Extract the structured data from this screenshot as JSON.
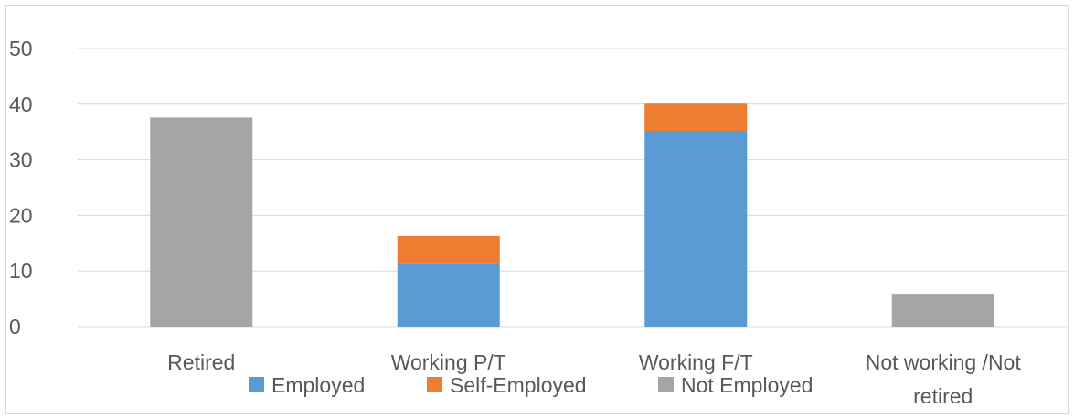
{
  "chart_data": {
    "type": "bar",
    "stacked": true,
    "title": "",
    "xlabel": "",
    "ylabel": "",
    "ylim": [
      0,
      50
    ],
    "yticks": [
      0,
      10,
      20,
      30,
      40,
      50
    ],
    "grid": true,
    "legend_position": "bottom",
    "categories": [
      [
        "Retired"
      ],
      [
        "Working P/T"
      ],
      [
        "Working F/T"
      ],
      [
        "Not working /Not",
        "retired"
      ]
    ],
    "series": [
      {
        "name": "Employed",
        "color": "#5b9bd5",
        "values": [
          0,
          11.2,
          35.2,
          0
        ]
      },
      {
        "name": "Self-Employed",
        "color": "#ed7d31",
        "values": [
          0,
          5.1,
          4.9,
          0
        ]
      },
      {
        "name": "Not Employed",
        "color": "#a5a5a5",
        "values": [
          37.6,
          0,
          0,
          5.9
        ]
      }
    ]
  }
}
